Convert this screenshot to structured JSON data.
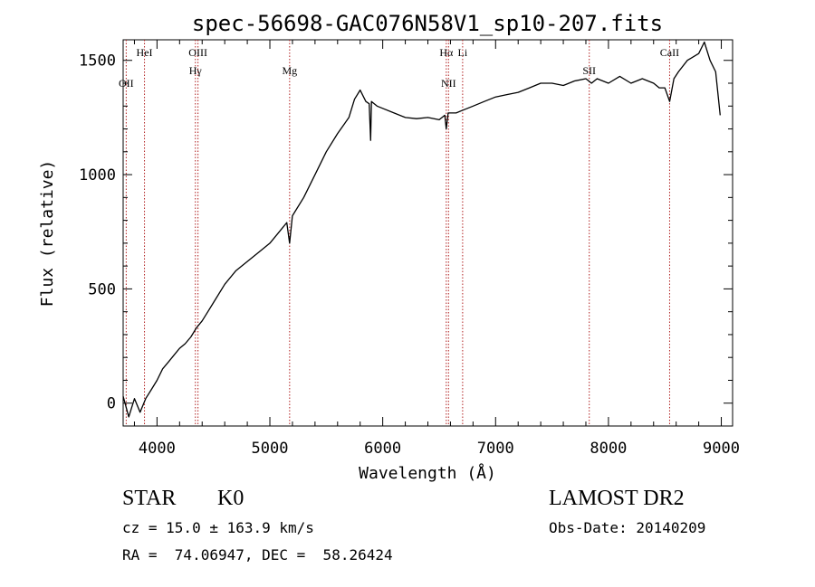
{
  "chart_data": {
    "type": "line",
    "title": "spec-56698-GAC076N58V1_sp10-207.fits",
    "xlabel": "Wavelength (Å)",
    "ylabel": "Flux (relative)",
    "xlim": [
      3700,
      9100
    ],
    "ylim": [
      -100,
      1590
    ],
    "xticks": [
      4000,
      5000,
      6000,
      7000,
      8000,
      9000
    ],
    "yticks": [
      0,
      500,
      1000,
      1500
    ],
    "grid": false,
    "series": [
      {
        "x": [
          3700,
          3750,
          3800,
          3850,
          3900,
          3950,
          4000,
          4050,
          4100,
          4150,
          4200,
          4250,
          4300,
          4350,
          4400,
          4450,
          4500,
          4600,
          4700,
          4800,
          4900,
          5000,
          5100,
          5150,
          5175,
          5200,
          5300,
          5400,
          5500,
          5600,
          5700,
          5750,
          5800,
          5850,
          5880,
          5893,
          5900,
          5950,
          6000,
          6100,
          6200,
          6300,
          6400,
          6500,
          6550,
          6563,
          6580,
          6650,
          6700,
          6800,
          6900,
          7000,
          7100,
          7200,
          7300,
          7400,
          7500,
          7600,
          7700,
          7800,
          7850,
          7900,
          8000,
          8100,
          8200,
          8300,
          8400,
          8450,
          8500,
          8542,
          8580,
          8620,
          8700,
          8800,
          8850,
          8900,
          8950,
          8990
        ],
        "y": [
          30,
          -60,
          20,
          -40,
          20,
          60,
          100,
          150,
          180,
          210,
          240,
          260,
          290,
          330,
          360,
          400,
          440,
          520,
          580,
          620,
          660,
          700,
          760,
          790,
          700,
          820,
          900,
          1000,
          1100,
          1180,
          1250,
          1330,
          1370,
          1320,
          1310,
          1150,
          1320,
          1300,
          1290,
          1270,
          1250,
          1245,
          1250,
          1240,
          1260,
          1200,
          1270,
          1270,
          1280,
          1300,
          1320,
          1340,
          1350,
          1360,
          1380,
          1400,
          1400,
          1390,
          1410,
          1420,
          1400,
          1420,
          1400,
          1430,
          1400,
          1420,
          1400,
          1380,
          1380,
          1320,
          1420,
          1450,
          1500,
          1530,
          1580,
          1500,
          1450,
          1260
        ]
      }
    ],
    "lines": [
      {
        "label": "OII",
        "x": 3727
      },
      {
        "label": "HeI",
        "x": 3889
      },
      {
        "label": "Hγ",
        "x": 4340
      },
      {
        "label": "OIII",
        "x": 4363
      },
      {
        "label": "Mg",
        "x": 5175
      },
      {
        "label": "Hα",
        "x": 6563
      },
      {
        "label": "NII",
        "x": 6583
      },
      {
        "label": "Li",
        "x": 6708
      },
      {
        "label": "SII",
        "x": 7830
      },
      {
        "label": "CaII",
        "x": 8542
      }
    ]
  },
  "info": {
    "object_class": "STAR",
    "subclass": "K0",
    "survey": "LAMOST DR2",
    "cz": "cz = 15.0 ± 163.9 km/s",
    "obs_date": "Obs-Date: 20140209",
    "coords": "RA =  74.06947, DEC =  58.26424"
  }
}
